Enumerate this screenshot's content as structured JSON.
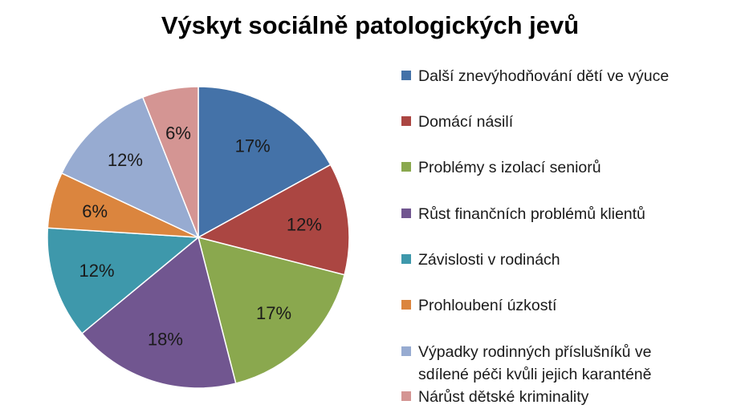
{
  "chart_data": {
    "type": "pie",
    "title": "Výskyt sociálně patologických jevů",
    "legend_position": "right",
    "start_angle_deg": 0,
    "direction": "clockwise",
    "slices": [
      {
        "name": "Další znevýhodňování dětí ve výuce",
        "name_lines": [
          "Další znevýhodňování dětí ve výuce"
        ],
        "value": 17,
        "label": "17%",
        "color": "#4472a8"
      },
      {
        "name": "Domácí násilí",
        "name_lines": [
          "Domácí násilí"
        ],
        "value": 12,
        "label": "12%",
        "color": "#ab4642"
      },
      {
        "name": "Problémy s izolací seniorů",
        "name_lines": [
          "Problémy s izolací seniorů"
        ],
        "value": 17,
        "label": "17%",
        "color": "#8aa84e"
      },
      {
        "name": "Růst finančních problémů klientů",
        "name_lines": [
          "Růst finančních problémů klientů"
        ],
        "value": 18,
        "label": "18%",
        "color": "#715690"
      },
      {
        "name": "Závislosti v rodinách",
        "name_lines": [
          "Závislosti v rodinách"
        ],
        "value": 12,
        "label": "12%",
        "color": "#3e98ab"
      },
      {
        "name": "Prohloubení úzkostí",
        "name_lines": [
          "Prohloubení úzkostí"
        ],
        "value": 6,
        "label": "6%",
        "color": "#db853e"
      },
      {
        "name": "Výpadky rodinných příslušníků ve sdílené péči kvůli jejich karanténě",
        "name_lines": [
          "Výpadky rodinných příslušníků ve",
          "sdílené péči kvůli jejich karanténě"
        ],
        "value": 12,
        "label": "12%",
        "color": "#97abd1"
      },
      {
        "name": "Nárůst dětské kriminality",
        "name_lines": [
          "Nárůst dětské kriminality"
        ],
        "value": 6,
        "label": "6%",
        "color": "#d49593"
      }
    ]
  }
}
